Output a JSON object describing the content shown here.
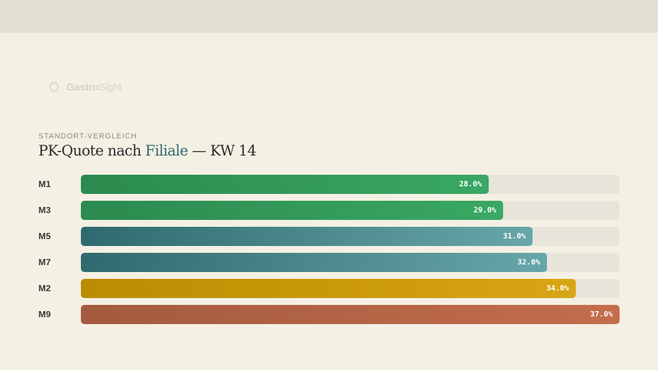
{
  "brand": {
    "name_bold": "Gastro",
    "name_light": "Sight",
    "icon": "circle-logo-icon"
  },
  "header": {
    "kicker": "STANDORT-VERGLEICH",
    "title_pre": "PK-Quote nach ",
    "title_accent": "Filiale",
    "title_post": " — KW 14"
  },
  "colors": {
    "green": [
      "#2b8a4e",
      "#3aa864"
    ],
    "teal": [
      "#2e6a6f",
      "#67a6aa"
    ],
    "gold": [
      "#bb8b00",
      "#d8a615"
    ],
    "rust": [
      "#a35a3e",
      "#c46d4d"
    ],
    "track": "#e7e5d9"
  },
  "chart_data": {
    "type": "bar",
    "orientation": "horizontal",
    "categories": [
      "M1",
      "M3",
      "M5",
      "M7",
      "M2",
      "M9"
    ],
    "values": [
      28.0,
      29.0,
      31.0,
      32.0,
      34.0,
      37.0
    ],
    "value_labels": [
      "28.0%",
      "29.0%",
      "31.0%",
      "32.0%",
      "34.0%",
      "37.0%"
    ],
    "bar_colors": [
      "green",
      "green",
      "teal",
      "teal",
      "gold",
      "rust"
    ],
    "xlim": [
      0,
      37.0
    ],
    "grid": false
  }
}
